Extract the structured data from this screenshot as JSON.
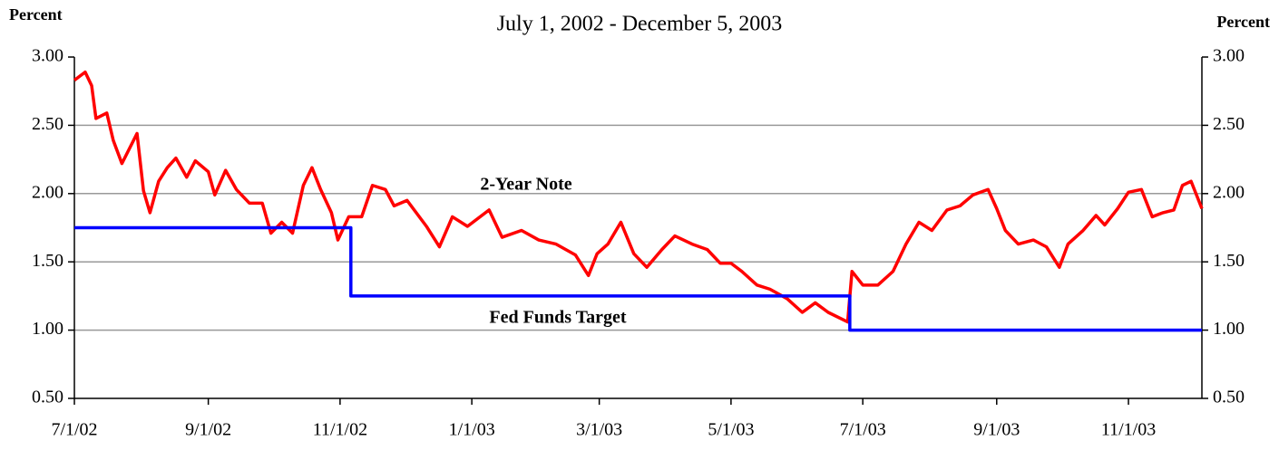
{
  "chart_data": {
    "type": "line",
    "subtitle": "July 1, 2002 - December 5, 2003",
    "ylabel": "Percent",
    "y2label": "Percent",
    "xlim": [
      "7/1/02",
      "12/5/03"
    ],
    "xticks": [
      "7/1/02",
      "9/1/02",
      "11/1/02",
      "1/1/03",
      "3/1/03",
      "5/1/03",
      "7/1/03",
      "9/1/03",
      "11/1/03"
    ],
    "ylim": [
      0.5,
      3.0
    ],
    "yticks": [
      {
        "value": 0.5,
        "label": "0.50"
      },
      {
        "value": 1.0,
        "label": "1.00"
      },
      {
        "value": 1.5,
        "label": "1.50"
      },
      {
        "value": 2.0,
        "label": "2.00"
      },
      {
        "value": 2.5,
        "label": "2.50"
      },
      {
        "value": 3.0,
        "label": "3.00"
      }
    ],
    "y2lim": [
      0.5,
      3.0
    ],
    "y2ticks": [
      {
        "value": 0.5,
        "label": "0.50"
      },
      {
        "value": 1.0,
        "label": "1.00"
      },
      {
        "value": 1.5,
        "label": "1.50"
      },
      {
        "value": 2.0,
        "label": "2.00"
      },
      {
        "value": 2.5,
        "label": "2.50"
      },
      {
        "value": 3.0,
        "label": "3.00"
      }
    ],
    "grid": true,
    "annotations": [
      {
        "text": "2-Year Note",
        "color": "#ff0000"
      },
      {
        "text": "Fed Funds Target",
        "color": "#0000ff"
      }
    ],
    "series": [
      {
        "name": "2-Year Note",
        "color": "#ff0000",
        "x": [
          "7/1/02",
          "7/6/02",
          "7/9/02",
          "7/11/02",
          "7/16/02",
          "7/19/02",
          "7/23/02",
          "7/30/02",
          "8/2/02",
          "8/5/02",
          "8/9/02",
          "8/13/02",
          "8/17/02",
          "8/22/02",
          "8/26/02",
          "9/1/02",
          "9/4/02",
          "9/9/02",
          "9/14/02",
          "9/20/02",
          "9/26/02",
          "9/30/02",
          "10/5/02",
          "10/10/02",
          "10/15/02",
          "10/19/02",
          "10/23/02",
          "10/28/02",
          "10/31/02",
          "11/5/02",
          "11/11/02",
          "11/16/02",
          "11/22/02",
          "11/26/02",
          "12/2/02",
          "12/11/02",
          "12/17/02",
          "12/23/02",
          "12/30/02",
          "1/9/03",
          "1/15/03",
          "1/24/03",
          "2/1/03",
          "2/9/03",
          "2/18/03",
          "2/24/03",
          "2/28/03",
          "3/5/03",
          "3/11/03",
          "3/17/03",
          "3/23/03",
          "3/30/03",
          "4/5/03",
          "4/13/03",
          "4/20/03",
          "4/26/03",
          "5/1/03",
          "5/6/03",
          "5/13/03",
          "5/19/03",
          "5/27/03",
          "6/3/03",
          "6/9/03",
          "6/15/03",
          "6/24/03",
          "6/26/03",
          "7/1/03",
          "7/8/03",
          "7/15/03",
          "7/21/03",
          "7/27/03",
          "8/2/03",
          "8/9/03",
          "8/15/03",
          "8/21/03",
          "8/28/03",
          "9/1/03",
          "9/5/03",
          "9/11/03",
          "9/18/03",
          "9/24/03",
          "9/30/03",
          "10/4/03",
          "10/11/03",
          "10/17/03",
          "10/21/03",
          "10/27/03",
          "11/1/03",
          "11/7/03",
          "11/12/03",
          "11/17/03",
          "11/22/03",
          "11/26/03",
          "11/30/03",
          "12/5/03"
        ],
        "values": [
          2.83,
          2.89,
          2.79,
          2.55,
          2.59,
          2.39,
          2.22,
          2.44,
          2.02,
          1.86,
          2.09,
          2.19,
          2.26,
          2.12,
          2.24,
          2.16,
          1.99,
          2.17,
          2.03,
          1.93,
          1.93,
          1.71,
          1.79,
          1.71,
          2.06,
          2.19,
          2.03,
          1.86,
          1.66,
          1.83,
          1.83,
          2.06,
          2.03,
          1.91,
          1.95,
          1.76,
          1.61,
          1.83,
          1.76,
          1.88,
          1.68,
          1.73,
          1.66,
          1.63,
          1.55,
          1.4,
          1.56,
          1.63,
          1.79,
          1.56,
          1.46,
          1.59,
          1.69,
          1.63,
          1.59,
          1.49,
          1.49,
          1.43,
          1.33,
          1.3,
          1.23,
          1.13,
          1.2,
          1.13,
          1.06,
          1.43,
          1.33,
          1.33,
          1.43,
          1.63,
          1.79,
          1.73,
          1.88,
          1.91,
          1.99,
          2.03,
          1.89,
          1.73,
          1.63,
          1.66,
          1.61,
          1.46,
          1.63,
          1.73,
          1.84,
          1.77,
          1.89,
          2.01,
          2.03,
          1.83,
          1.86,
          1.88,
          2.06,
          2.09,
          1.89
        ]
      },
      {
        "name": "Fed Funds Target",
        "color": "#0000ff",
        "x": [
          "7/1/02",
          "11/6/02",
          "11/6/02",
          "6/25/03",
          "6/25/03",
          "12/5/03"
        ],
        "values": [
          1.75,
          1.75,
          1.25,
          1.25,
          1.0,
          1.0
        ]
      }
    ]
  }
}
